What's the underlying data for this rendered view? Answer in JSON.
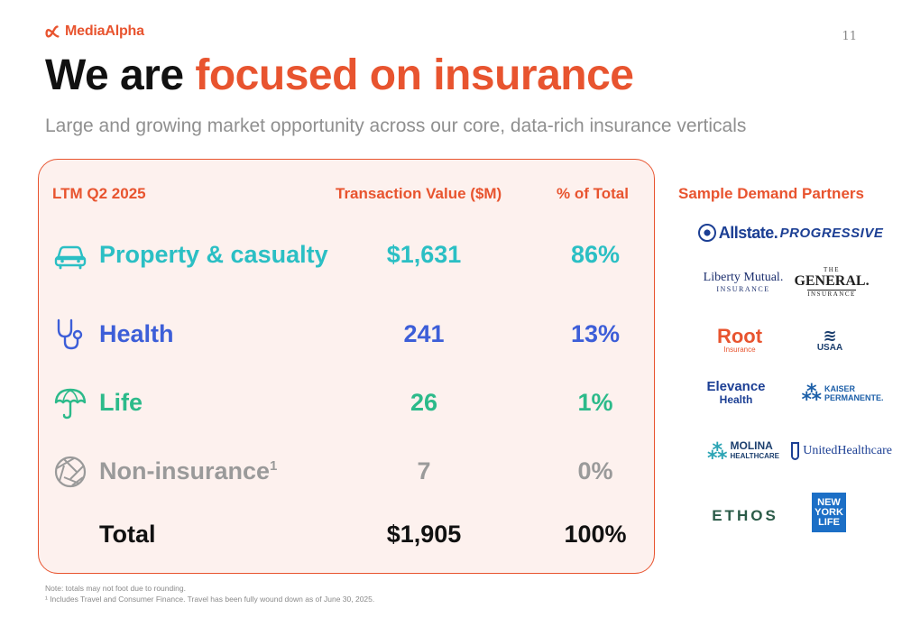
{
  "header": {
    "brand": "MediaAlpha",
    "page_number": "11"
  },
  "title": {
    "part1": "We are ",
    "part2": "focused on insurance"
  },
  "subtitle": "Large and growing market opportunity across our core, data-rich insurance verticals",
  "table": {
    "headers": {
      "label": "LTM Q2 2025",
      "value": "Transaction Value ($M)",
      "pct": "% of Total"
    },
    "rows": [
      {
        "label": "Property & casualty",
        "footnote": "",
        "value": "$1,631",
        "pct": "86%",
        "icon": "car-icon",
        "color": "#2bbfc4"
      },
      {
        "label": "Health",
        "footnote": "",
        "value": "241",
        "pct": "13%",
        "icon": "stethoscope-icon",
        "color": "#3d5ed8"
      },
      {
        "label": "Life",
        "footnote": "",
        "value": "26",
        "pct": "1%",
        "icon": "umbrella-icon",
        "color": "#2cba8a"
      },
      {
        "label": "Non-insurance",
        "footnote": "1",
        "value": "7",
        "pct": "0%",
        "icon": "aperture-icon",
        "color": "#9a9a9a"
      }
    ],
    "total": {
      "label": "Total",
      "value": "$1,905",
      "pct": "100%"
    }
  },
  "partners": {
    "title": "Sample Demand Partners",
    "logos": {
      "allstate": "Allstate.",
      "progressive": "PROGRESSIVE",
      "liberty_mutual": "Liberty Mutual.",
      "liberty_mutual_sub": "INSURANCE",
      "general_top": "THE",
      "general": "GENERAL.",
      "general_sub": "INSURANCE",
      "root": "Root",
      "root_sub": "Insurance",
      "usaa": "USAA",
      "elevance": "Elevance",
      "elevance_sub": "Health",
      "kaiser_top": "KAISER",
      "kaiser_bottom": "PERMANENTE.",
      "molina": "MOLINA",
      "molina_sub": "HEALTHCARE",
      "uhc": "UnitedHealthcare",
      "ethos": "ETHOS",
      "nyl_1": "NEW",
      "nyl_2": "YORK",
      "nyl_3": "LIFE"
    }
  },
  "notes": {
    "line1": "Note: totals may not foot due to rounding.",
    "line2": "¹ Includes Travel and Consumer Finance. Travel has been fully wound down as of June 30, 2025."
  },
  "colors": {
    "accent": "#e8542f",
    "panel_bg": "#fdf1ee"
  }
}
